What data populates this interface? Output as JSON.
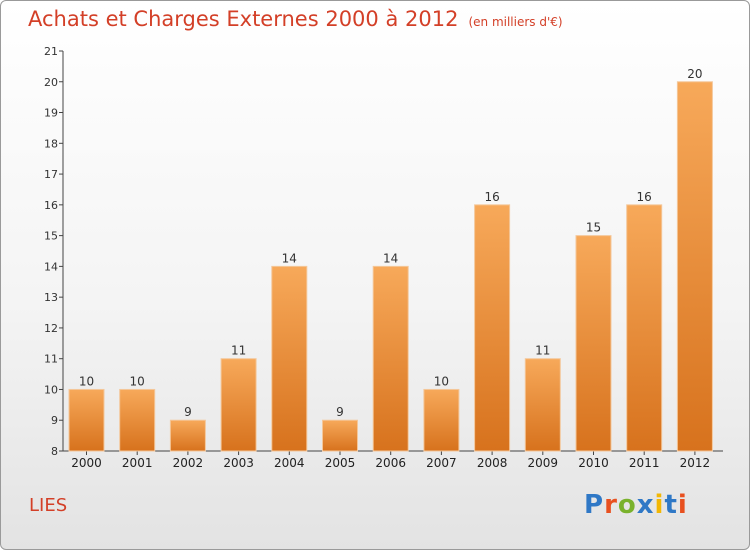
{
  "title": "Achats et Charges Externes 2000 à 2012",
  "unit": "(en milliers d'€)",
  "commune": "LIES",
  "brand": {
    "letters": [
      "P",
      "r",
      "o",
      "x",
      "i",
      "t",
      "i"
    ],
    "colors": [
      "#2f78c6",
      "#e8501f",
      "#7ab22c",
      "#2f78c6",
      "#f2b705",
      "#2f78c6",
      "#e8501f"
    ]
  },
  "colors": {
    "bar_top": "#f7a95a",
    "bar_bottom": "#d7721d",
    "bar_stroke": "#f4c79a",
    "text": "#d33f27"
  },
  "chart_data": {
    "type": "bar",
    "categories": [
      "2000",
      "2001",
      "2002",
      "2003",
      "2004",
      "2005",
      "2006",
      "2007",
      "2008",
      "2009",
      "2010",
      "2011",
      "2012"
    ],
    "values": [
      10,
      10,
      9,
      11,
      14,
      9,
      14,
      10,
      16,
      11,
      15,
      16,
      20
    ],
    "ylim": [
      8,
      21
    ],
    "yticks": [
      8,
      9,
      10,
      11,
      12,
      13,
      14,
      15,
      16,
      17,
      18,
      19,
      20,
      21
    ],
    "grid": false,
    "legend": "none"
  }
}
